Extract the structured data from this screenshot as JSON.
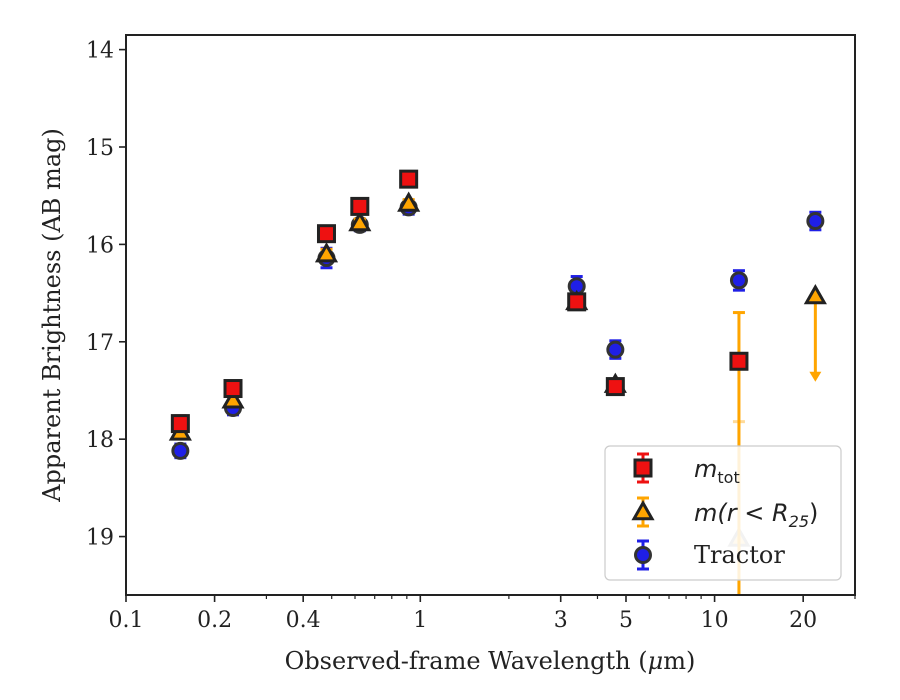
{
  "chart_data": {
    "type": "scatter",
    "xlabel_prefix": "Observed-frame Wavelength (",
    "xlabel_unit_mu": "μ",
    "xlabel_suffix": "m)",
    "ylabel": "Apparent Brightness (AB mag)",
    "xscale": "log",
    "xlim": [
      0.1,
      30
    ],
    "ylim": [
      19.6,
      13.85
    ],
    "y_inverted": true,
    "grid": false,
    "legend_position": "bottom-right",
    "x_ticks": [
      {
        "value": 0.1,
        "label": "0.1"
      },
      {
        "value": 0.2,
        "label": "0.2"
      },
      {
        "value": 0.4,
        "label": "0.4"
      },
      {
        "value": 1,
        "label": "1"
      },
      {
        "value": 3,
        "label": "3"
      },
      {
        "value": 5,
        "label": "5"
      },
      {
        "value": 10,
        "label": "10"
      },
      {
        "value": 20,
        "label": "20"
      }
    ],
    "x_minor_ticks": [
      0.3,
      0.5,
      0.6,
      0.7,
      0.8,
      0.9,
      2,
      4,
      6,
      7,
      8,
      9,
      30
    ],
    "y_ticks": [
      {
        "value": 14,
        "label": "14"
      },
      {
        "value": 15,
        "label": "15"
      },
      {
        "value": 16,
        "label": "16"
      },
      {
        "value": 17,
        "label": "17"
      },
      {
        "value": 18,
        "label": "18"
      },
      {
        "value": 19,
        "label": "19"
      }
    ],
    "series": [
      {
        "key": "tractor",
        "legend_label": "Tractor",
        "marker": "circle",
        "color": "#1f1fe6",
        "edge": "#333333",
        "errcolor": "#1f1fe6",
        "points": [
          {
            "x": 0.153,
            "y": 18.12,
            "err": 0.07
          },
          {
            "x": 0.231,
            "y": 17.68,
            "err": 0.07
          },
          {
            "x": 0.48,
            "y": 16.14,
            "err": 0.1
          },
          {
            "x": 0.623,
            "y": 15.8,
            "err": 0.06
          },
          {
            "x": 0.913,
            "y": 15.62,
            "err": 0.07
          },
          {
            "x": 3.4,
            "y": 16.43,
            "err": 0.1
          },
          {
            "x": 4.6,
            "y": 17.08,
            "err": 0.09
          },
          {
            "x": 12.1,
            "y": 16.37,
            "err": 0.1
          },
          {
            "x": 22.0,
            "y": 15.76,
            "err": 0.09
          }
        ]
      },
      {
        "key": "mr25",
        "legend_label_prefix": "m(r < R",
        "legend_label_sub": "25",
        "legend_label_suffix": ")",
        "marker": "triangle",
        "color": "#ffa500",
        "edge": "#222222",
        "errcolor": "#ffa500",
        "points": [
          {
            "x": 0.153,
            "y": 17.93,
            "err": 0.04
          },
          {
            "x": 0.231,
            "y": 17.6,
            "err": 0.04
          },
          {
            "x": 0.48,
            "y": 16.1,
            "err": 0.05
          },
          {
            "x": 0.623,
            "y": 15.78,
            "err": 0.04
          },
          {
            "x": 0.913,
            "y": 15.58,
            "err": 0.04
          },
          {
            "x": 3.4,
            "y": 16.59,
            "err": 0.05
          },
          {
            "x": 4.6,
            "y": 17.44,
            "err": 0.04
          },
          {
            "x": 12.1,
            "y": 19.02,
            "err": 1.2,
            "faded": true
          },
          {
            "x": 22.0,
            "y": 16.53,
            "upper_limit_to": 17.38
          }
        ]
      },
      {
        "key": "mtot",
        "legend_label_prefix": "m",
        "legend_label_sub": "tot",
        "marker": "square",
        "color": "#ee1111",
        "edge": "#222222",
        "errcolor": "#ee1111",
        "points": [
          {
            "x": 0.153,
            "y": 17.84,
            "err": 0.08
          },
          {
            "x": 0.231,
            "y": 17.48,
            "err": 0.07
          },
          {
            "x": 0.48,
            "y": 15.89,
            "err": 0.07
          },
          {
            "x": 0.623,
            "y": 15.61,
            "err": 0.06
          },
          {
            "x": 0.913,
            "y": 15.33,
            "err": 0.06
          },
          {
            "x": 3.4,
            "y": 16.59,
            "err": 0.07
          },
          {
            "x": 4.6,
            "y": 17.46,
            "err": 0.05
          },
          {
            "x": 12.1,
            "y": 17.2,
            "err_low": 0.5,
            "err_high": 2.5,
            "errcolor": "#ffa500"
          }
        ]
      }
    ]
  }
}
